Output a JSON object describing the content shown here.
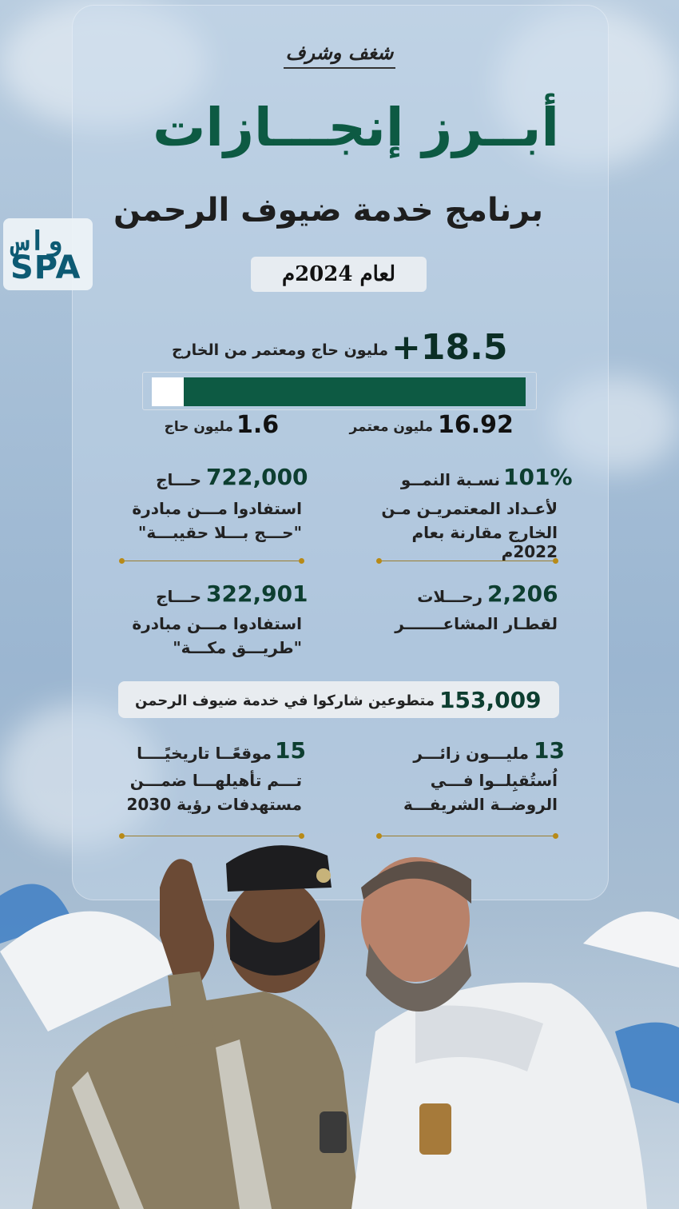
{
  "header": {
    "tagline": "شغف وشرف",
    "title": "أبــرز إنجـــازات",
    "subtitle": "برنامج خدمة ضيوف الرحمن",
    "year": "لعام 2024م"
  },
  "logo": {
    "top": "واس",
    "bottom": "SPA"
  },
  "hero": {
    "number": "+18.5",
    "label": "مليون حاج ومعتمر من الخارج",
    "bar": {
      "pilgrims_fraction": 0.086
    },
    "left_value": "1.6",
    "left_label": "مليون حاج",
    "right_value": "16.92",
    "right_label": "مليون معتمر"
  },
  "stats": [
    {
      "value": "101%",
      "unit": "نسـبة النمــو",
      "lines": [
        "لأعـداد المعتمريـن مـن",
        "الخارج مقارنة بعام 2022م"
      ]
    },
    {
      "value": "722,000",
      "unit": "حـــاج",
      "lines": [
        "استفادوا مـــن مبادرة",
        "\"حـــج بـــلا حقيبـــة\""
      ]
    },
    {
      "value": "2,206",
      "unit": "رحـــلات",
      "lines": [
        "لقطـار المشاعـــــــر"
      ]
    },
    {
      "value": "322,901",
      "unit": "حـــاج",
      "lines": [
        "استفادوا مـــن مبادرة",
        "\"طريـــق مكـــة\""
      ]
    }
  ],
  "volunteers": {
    "value": "153,009",
    "label": "متطوعين شاركوا في خدمة ضيوف الرحمن"
  },
  "bottom_stats": [
    {
      "value": "13",
      "unit": "مليـــون زائـــر",
      "lines": [
        "اُستُقبِلــوا فـــي",
        "الروضــة الشريفـــة"
      ]
    },
    {
      "value": "15",
      "unit": "موقعًــا تاريخيًــــا",
      "lines": [
        "تـــم تأهيلهـــا ضمـــن",
        "مستهدفات رؤية 2030"
      ]
    }
  ],
  "colors": {
    "brand_green": "#0d5a43",
    "gold": "#b88a17",
    "sky": "#a9c1d8"
  }
}
